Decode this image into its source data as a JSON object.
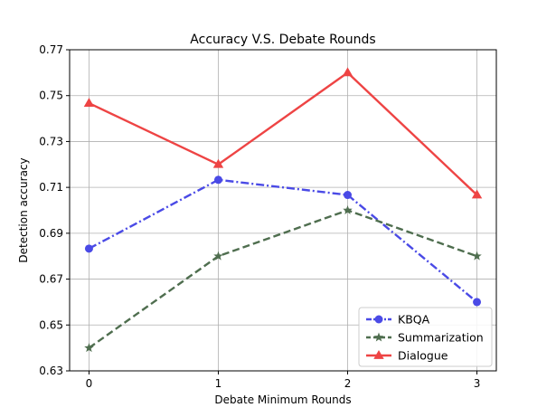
{
  "chart_data": {
    "type": "line",
    "title": "Accuracy V.S. Debate Rounds",
    "xlabel": "Debate Minimum Rounds",
    "ylabel": "Detection accuracy",
    "x": [
      0,
      1,
      2,
      3
    ],
    "x_tick_labels": [
      "0",
      "1",
      "2",
      "3"
    ],
    "ylim": [
      0.63,
      0.77
    ],
    "y_ticks": [
      0.63,
      0.65,
      0.67,
      0.69,
      0.71,
      0.73,
      0.75,
      0.77
    ],
    "y_tick_labels": [
      "0.63",
      "0.65",
      "0.67",
      "0.69",
      "0.71",
      "0.73",
      "0.75",
      "0.77"
    ],
    "grid": true,
    "legend_position": "lower-right",
    "series": [
      {
        "name": "KBQA",
        "values": [
          0.6833,
          0.7133,
          0.7067,
          0.66
        ],
        "color": "#4a4ae6",
        "line_style": "dash-dot",
        "marker": "circle"
      },
      {
        "name": "Summarization",
        "values": [
          0.64,
          0.68,
          0.7,
          0.68
        ],
        "color": "#4f6e4f",
        "line_style": "dashed",
        "marker": "star"
      },
      {
        "name": "Dialogue",
        "values": [
          0.7467,
          0.72,
          0.76,
          0.7067
        ],
        "color": "#ee4444",
        "line_style": "solid",
        "marker": "triangle"
      }
    ]
  }
}
